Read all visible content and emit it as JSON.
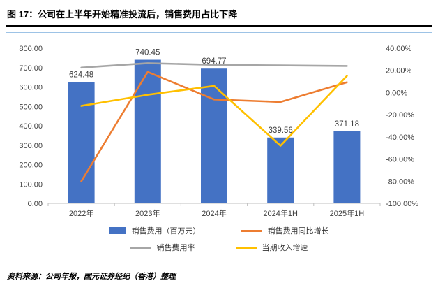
{
  "title": "图 17：公司在上半年开始精准投流后，销售费用占比下降",
  "source": "资料来源：公司年报，国元证券经纪（香港）整理",
  "chart_data": {
    "type": "bar+line",
    "title": "图 17：公司在上半年开始精准投流后，销售费用占比下降",
    "categories": [
      "2022年",
      "2023年",
      "2024年",
      "2024年1H",
      "2025年1H"
    ],
    "bar_series": {
      "name": "销售费用（百万元）",
      "color": "#4472C4",
      "axis": "left",
      "values": [
        624.48,
        740.45,
        694.77,
        339.56,
        371.18
      ],
      "labels": [
        "624.48",
        "740.45",
        "694.77",
        "339.56",
        "371.18"
      ]
    },
    "line_series": [
      {
        "name": "销售费用率",
        "color": "#A6A6A6",
        "axis": "right",
        "values": [
          22.5,
          26.5,
          25,
          24.5,
          24
        ]
      },
      {
        "name": "销售费用同比增长",
        "color": "#ED7D31",
        "axis": "right",
        "values": [
          -80,
          18.6,
          -6.2,
          -8.5,
          9.3
        ]
      },
      {
        "name": "当期收入增速",
        "color": "#FFC000",
        "axis": "right",
        "values": [
          -12,
          -2,
          6,
          -48,
          15
        ]
      }
    ],
    "left_axis": {
      "min": 0,
      "max": 800,
      "step": 100,
      "tick_labels": [
        "800.00",
        "700.00",
        "600.00",
        "500.00",
        "400.00",
        "300.00",
        "200.00",
        "100.00",
        "0.00"
      ]
    },
    "right_axis": {
      "min": -100,
      "max": 40,
      "step": 20,
      "tick_labels": [
        "40.00%",
        "20.00%",
        "0.00%",
        "-20.00%",
        "-40.00%",
        "-60.00%",
        "-80.00%",
        "-100.00%"
      ]
    },
    "grid": false,
    "legend_position": "bottom"
  },
  "legend": [
    {
      "label": "销售费用（百万元）",
      "color": "#4472C4",
      "type": "bar"
    },
    {
      "label": "销售费用同比增长",
      "color": "#ED7D31",
      "type": "line"
    },
    {
      "label": "销售费用率",
      "color": "#A6A6A6",
      "type": "line"
    },
    {
      "label": "当期收入增速",
      "color": "#FFC000",
      "type": "line"
    }
  ]
}
